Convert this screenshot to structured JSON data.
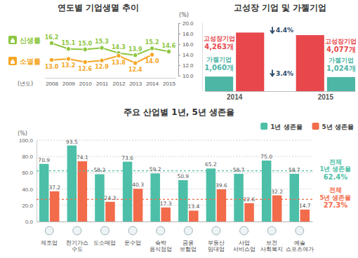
{
  "chart_data": [
    {
      "type": "line",
      "title": "연도별 기업생멸 추이",
      "categories": [
        "2008",
        "2009",
        "2010",
        "2011",
        "2012",
        "2013",
        "2014",
        "2015"
      ],
      "x_label": "(년도)",
      "y_label": "(%)",
      "ylim": [
        10,
        20
      ],
      "yticks": [
        {
          "value": 10,
          "label": "10.0"
        },
        {
          "value": 12,
          "label": "12.0"
        },
        {
          "value": 14,
          "label": "14.0"
        },
        {
          "value": 16,
          "label": "16.0"
        },
        {
          "value": 18,
          "label": "18.0"
        },
        {
          "value": 20,
          "label": "20.0"
        }
      ],
      "grid": false,
      "legend": "left",
      "data_labels": true,
      "series": [
        {
          "name": "신생률",
          "color": "#8dc63f",
          "marker": "circle",
          "values": [
            16.2,
            15.1,
            15.0,
            15.3,
            14.3,
            13.9,
            15.2,
            14.6
          ],
          "value_labels": [
            "16.2",
            "15.1",
            "15.0",
            "15.3",
            "14.3",
            "13.9",
            "15.2",
            "14.6"
          ]
        },
        {
          "name": "소멸률",
          "color": "#f5a623",
          "marker": "circle",
          "values": [
            13.0,
            13.2,
            12.6,
            12.9,
            13.8,
            12.4,
            14.0,
            null
          ],
          "value_labels": [
            "13.0",
            "13.2",
            "12.6",
            "12.9",
            "13.8",
            "12.4",
            "14.0",
            null
          ]
        }
      ]
    },
    {
      "type": "bar",
      "title": "고성장 기업 및 가젤기업",
      "categories": [
        "2014",
        "2015"
      ],
      "ylim": [
        0,
        5000
      ],
      "yticks": [],
      "tick_labels": "x",
      "data_labels": true,
      "series": [
        {
          "name": "고성장기업",
          "color": "#e8474c",
          "values": [
            4263,
            4077
          ],
          "value_labels": [
            "4,263개",
            "4,077개"
          ]
        },
        {
          "name": "가젤기업",
          "color": "#4db6a5",
          "values": [
            1060,
            1024
          ],
          "value_labels": [
            "1,060개",
            "1,024개"
          ]
        }
      ],
      "annotations": [
        "4.4%",
        "3.4%"
      ]
    },
    {
      "type": "bar",
      "title": "주요 산업별 1년, 5년 생존율",
      "categories": [
        "제조업",
        "전기가스\n수도",
        "도소매업",
        "운수업",
        "숙박\n음식점업",
        "금융\n보험업",
        "부동산\n임대업",
        "사업\n서비스업",
        "보건\n사회복지",
        "예술\n스포츠여가"
      ],
      "y_label": "(%)",
      "ylim": [
        0,
        100
      ],
      "yticks": [
        {
          "value": 0,
          "label": "0.0"
        },
        {
          "value": 20,
          "label": "20.0"
        },
        {
          "value": 40,
          "label": "40.0"
        },
        {
          "value": 60,
          "label": "60.0"
        },
        {
          "value": 80,
          "label": "80.0"
        },
        {
          "value": 100,
          "label": "100.0"
        }
      ],
      "grid": true,
      "legend": "top-right",
      "data_labels": true,
      "series": [
        {
          "name": "1년 생존율",
          "color": "#4dbfa8",
          "values": [
            70.9,
            93.5,
            58.2,
            73.6,
            59.2,
            50.9,
            65.2,
            58.7,
            75.0,
            58.7
          ],
          "value_labels": [
            "70.9",
            "93.5",
            "58.2",
            "73.6",
            "59.2",
            "50.9",
            "65.2",
            "58.7",
            "75.0",
            "58.7"
          ]
        },
        {
          "name": "5년 생존율",
          "color": "#f26b4b",
          "values": [
            37.2,
            74.1,
            24.3,
            40.3,
            17.3,
            13.4,
            39.6,
            22.6,
            32.2,
            14.7
          ],
          "value_labels": [
            "37.2",
            "74.1",
            "24.3",
            "40.3",
            "17.3",
            "13.4",
            "39.6",
            "22.6",
            "32.2",
            "14.7"
          ]
        }
      ],
      "reference_lines": [
        {
          "label": "전체\n1년 생존율",
          "value": 62.4,
          "value_label": "62.4%",
          "color": "#4dbfa8"
        },
        {
          "label": "전체\n5년 생존율",
          "value": 27.3,
          "value_label": "27.3%",
          "color": "#f26b4b"
        }
      ]
    }
  ]
}
